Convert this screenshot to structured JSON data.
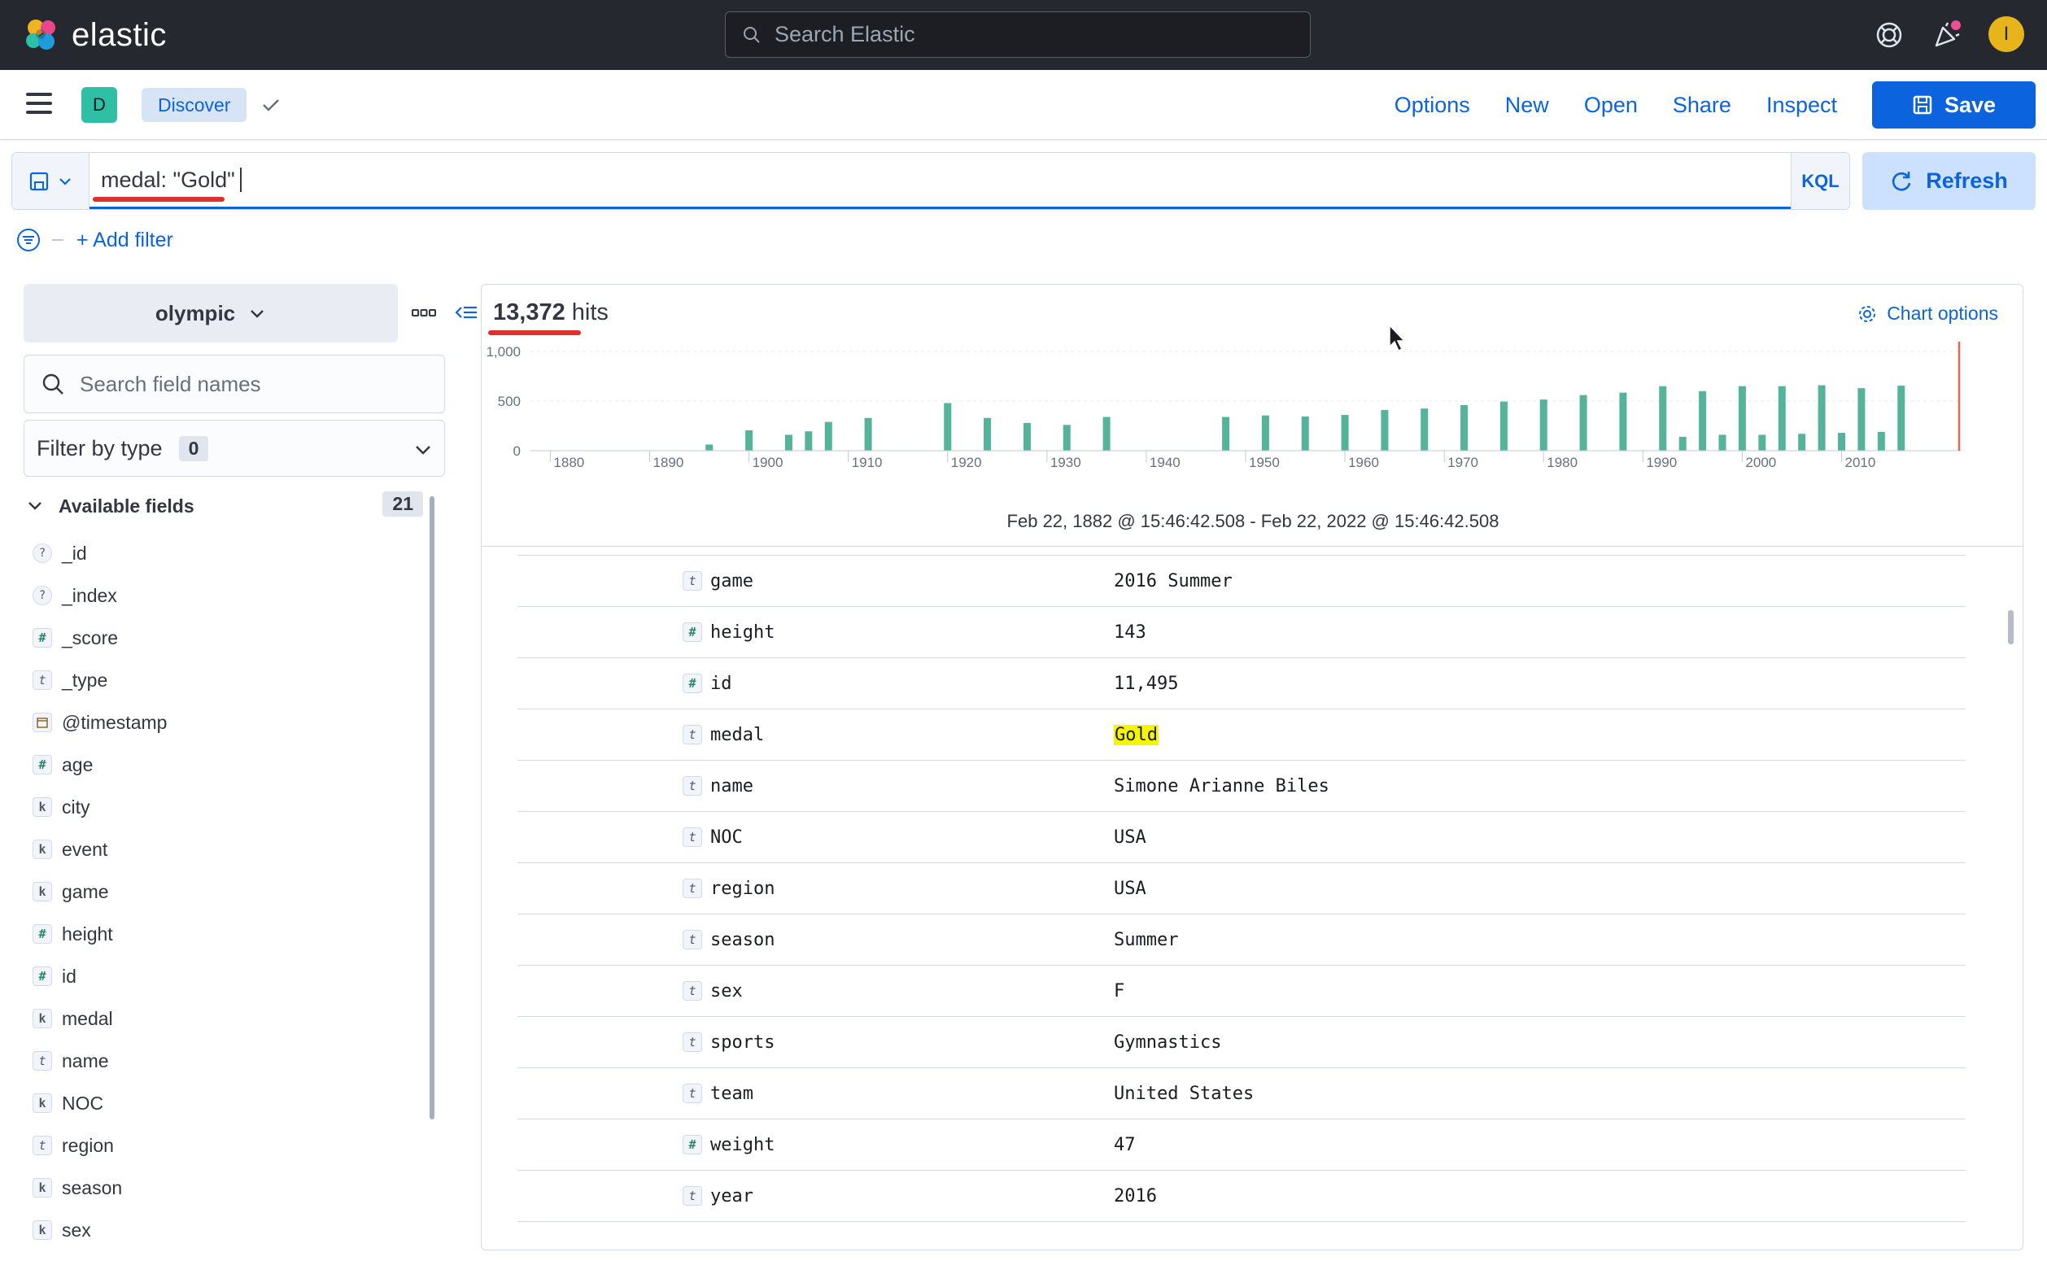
{
  "header": {
    "brand": "elastic",
    "search_placeholder": "Search Elastic",
    "avatar_initial": "I"
  },
  "appbar": {
    "space_initial": "D",
    "breadcrumb": "Discover",
    "menu": {
      "options": "Options",
      "new": "New",
      "open": "Open",
      "share": "Share",
      "inspect": "Inspect"
    },
    "save_label": "Save"
  },
  "query": {
    "value": "medal: \"Gold\"",
    "language": "KQL",
    "refresh_label": "Refresh",
    "add_filter_label": "+ Add filter"
  },
  "sidebar": {
    "index_pattern": "olympic",
    "field_search_placeholder": "Search field names",
    "filter_by_type_label": "Filter by type",
    "filter_by_type_count": "0",
    "available_label": "Available fields",
    "available_count": "21",
    "fields": [
      {
        "name": "_id",
        "type": "unknown"
      },
      {
        "name": "_index",
        "type": "unknown"
      },
      {
        "name": "_score",
        "type": "number"
      },
      {
        "name": "_type",
        "type": "text"
      },
      {
        "name": "@timestamp",
        "type": "date"
      },
      {
        "name": "age",
        "type": "number"
      },
      {
        "name": "city",
        "type": "keyword"
      },
      {
        "name": "event",
        "type": "keyword"
      },
      {
        "name": "game",
        "type": "keyword"
      },
      {
        "name": "height",
        "type": "number"
      },
      {
        "name": "id",
        "type": "number"
      },
      {
        "name": "medal",
        "type": "keyword"
      },
      {
        "name": "name",
        "type": "text"
      },
      {
        "name": "NOC",
        "type": "keyword"
      },
      {
        "name": "region",
        "type": "text"
      },
      {
        "name": "season",
        "type": "keyword"
      },
      {
        "name": "sex",
        "type": "keyword"
      }
    ]
  },
  "main": {
    "hits_count": "13,372",
    "hits_label": "hits",
    "chart_options_label": "Chart options",
    "time_range": "Feb 22, 1882 @ 15:46:42.508 - Feb 22, 2022 @ 15:46:42.508",
    "document": [
      {
        "field": "game",
        "type": "text",
        "value": "2016 Summer"
      },
      {
        "field": "height",
        "type": "number",
        "value": "143"
      },
      {
        "field": "id",
        "type": "number",
        "value": "11,495"
      },
      {
        "field": "medal",
        "type": "text",
        "value": "Gold",
        "highlight": true
      },
      {
        "field": "name",
        "type": "text",
        "value": "Simone Arianne Biles"
      },
      {
        "field": "NOC",
        "type": "text",
        "value": "USA"
      },
      {
        "field": "region",
        "type": "text",
        "value": "USA"
      },
      {
        "field": "season",
        "type": "text",
        "value": "Summer"
      },
      {
        "field": "sex",
        "type": "text",
        "value": "F"
      },
      {
        "field": "sports",
        "type": "text",
        "value": "Gymnastics"
      },
      {
        "field": "team",
        "type": "text",
        "value": "United States"
      },
      {
        "field": "weight",
        "type": "number",
        "value": "47"
      },
      {
        "field": "year",
        "type": "text",
        "value": "2016"
      }
    ]
  },
  "colors": {
    "accent": "#0b64dd",
    "bar": "#54b399",
    "header_bg": "#25282f",
    "annotation": "#e0302a",
    "now_marker": "#e7664c"
  },
  "chart_data": {
    "type": "bar",
    "title": "",
    "xlabel": "",
    "ylabel": "",
    "ylim": [
      0,
      1000
    ],
    "y_ticks": [
      "1,000",
      "500",
      "0"
    ],
    "x_ticks": [
      "1880",
      "1890",
      "1900",
      "1910",
      "1920",
      "1930",
      "1940",
      "1950",
      "1960",
      "1970",
      "1980",
      "1990",
      "2000",
      "2010"
    ],
    "xlim": [
      1878,
      2022
    ],
    "x": [
      1896,
      1900,
      1904,
      1906,
      1908,
      1912,
      1920,
      1924,
      1928,
      1932,
      1936,
      1948,
      1952,
      1956,
      1960,
      1964,
      1968,
      1972,
      1976,
      1980,
      1984,
      1988,
      1992,
      1994,
      1996,
      1998,
      2000,
      2002,
      2004,
      2006,
      2008,
      2010,
      2012,
      2014,
      2016
    ],
    "values": [
      62,
      205,
      160,
      195,
      290,
      330,
      480,
      330,
      280,
      260,
      340,
      340,
      355,
      345,
      360,
      410,
      425,
      460,
      495,
      515,
      560,
      585,
      650,
      140,
      600,
      160,
      650,
      160,
      650,
      170,
      660,
      180,
      630,
      190,
      655
    ],
    "series": [
      {
        "values": [
          62,
          205,
          160,
          195,
          290,
          330,
          480,
          330,
          280,
          260,
          340,
          340,
          355,
          345,
          360,
          410,
          425,
          460,
          495,
          515,
          560,
          585,
          650,
          140,
          600,
          160,
          650,
          160,
          650,
          170,
          660,
          180,
          630,
          190,
          655
        ]
      }
    ],
    "grid": true
  }
}
